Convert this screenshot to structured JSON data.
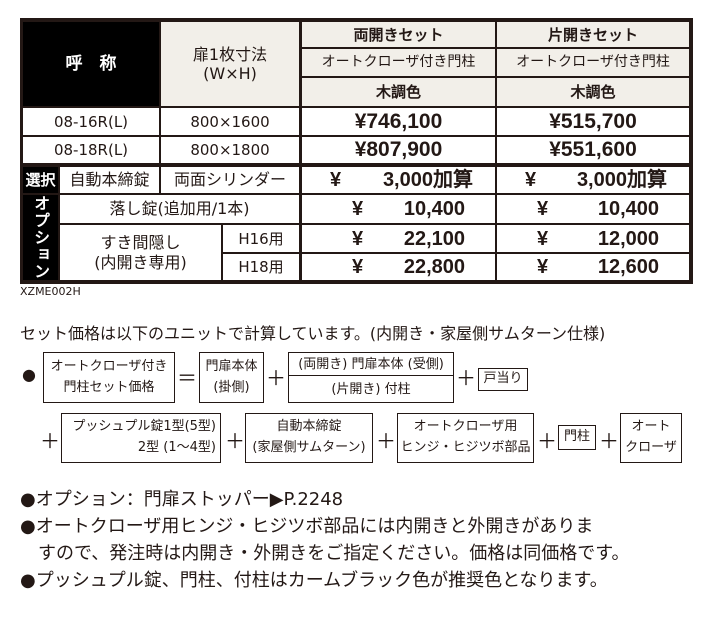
{
  "table": {
    "header": {
      "name": "呼　称",
      "size": "扉1枚寸法",
      "size_unit": "(W×H)",
      "cols": [
        {
          "type": "両開きセット",
          "post": "オートクローザ付き門柱",
          "color": "木調色"
        },
        {
          "type": "片開きセット",
          "post": "オートクローザ付き門柱",
          "color": "木調色"
        }
      ]
    },
    "rows": [
      {
        "model": "08-16R(L)",
        "size": "800×1600",
        "prices": [
          "¥746,100",
          "¥515,700"
        ]
      },
      {
        "model": "08-18R(L)",
        "size": "800×1800",
        "prices": [
          "¥807,900",
          "¥551,600"
        ]
      }
    ],
    "select": {
      "label": "選択",
      "item": "自動本締錠",
      "variant": "両面シリンダー",
      "yen": "¥",
      "prices": [
        "3,000加算",
        "3,000加算"
      ]
    },
    "option": {
      "label": "オプション",
      "drop_bolt": {
        "name": "落し錠(追加用/1本)",
        "prices": [
          "10,400",
          "10,400"
        ]
      },
      "gap_cover": {
        "name": "すき間隠し",
        "sub": "(内開き専用)",
        "rows": [
          {
            "h": "H16用",
            "prices": [
              "22,100",
              "12,000"
            ]
          },
          {
            "h": "H18用",
            "prices": [
              "22,800",
              "12,600"
            ]
          }
        ]
      }
    },
    "code": "XZME002H"
  },
  "formula": {
    "intro": "セット価格は以下のユニットで計算しています。(内開き・家屋側サムターン仕様)",
    "bullet": "●",
    "result": [
      "オートクローザ付き",
      "門柱セット価格"
    ],
    "eq": "＝",
    "plus": "＋",
    "door": [
      "門扉本体",
      "(掛側)"
    ],
    "door2_top": "(両開き) 門扉本体 (受側)",
    "door2_bottom": "(片開き) 付柱",
    "stop": "戸当り",
    "push": [
      "プッシュプル錠1型(5型)",
      "2型 (1～4型)"
    ],
    "lock": [
      "自動本締錠",
      "(家屋側サムターン)"
    ],
    "hinge": [
      "オートクローザ用",
      "ヒンジ・ヒジツボ部品"
    ],
    "post": "門柱",
    "closer": [
      "オート",
      "クローザ"
    ]
  },
  "notes": [
    "●オプション：門扉ストッパー▶P.2248",
    "●オートクローザ用ヒンジ・ヒジツボ部品には内開きと外開きがありま",
    "　すので、発注時は内開き・外開きをご指定ください。価格は同価格です。",
    "●プッシュプル錠、門柱、付柱はカームブラック色が推奨色となります。"
  ]
}
